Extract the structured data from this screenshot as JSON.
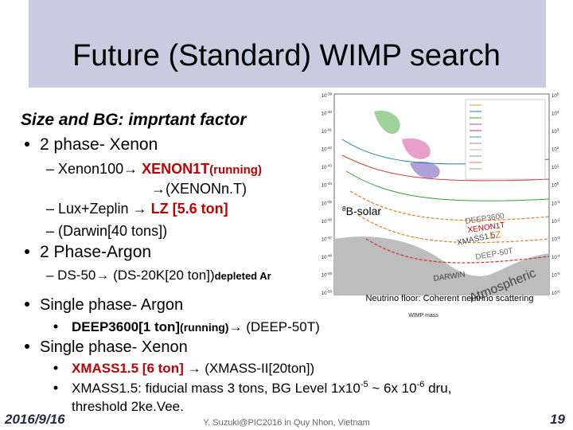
{
  "title": "Future (Standard) WIMP search",
  "body": {
    "heading": "Size and BG:  imprtant factor",
    "lines": [
      [
        "2 phase- Xenon"
      ],
      [
        "– Xenon100→ ",
        "XENON1T",
        "(running)"
      ],
      [
        "→(XENONn.T)"
      ],
      [
        "– Lux+Zeplin → ",
        "LZ [5.6 ton]"
      ],
      [
        "– (Darwin[40 tons])"
      ],
      [
        "2 Phase-Argon"
      ],
      [
        "– DS-50→ (DS-20K[20 ton])",
        "depleted Ar"
      ],
      [
        "Single phase- Argon"
      ],
      [
        "DEEP3600[1 ton]",
        "(running)",
        "→ (DEEP-50T)"
      ],
      [
        "Single phase- Xenon"
      ],
      [
        "XMASS1.5 [6 ton]",
        " → (XMASS-II[20ton])"
      ],
      [
        "XMASS1.5: fiducial mass 3 tons, BG Level 1x10",
        "-5",
        " ~ 6x 10",
        "-6",
        " dru,"
      ],
      [
        "threshold 2ke.Vee."
      ]
    ]
  },
  "plot": {
    "left_ticks": [
      "-39",
      "-40",
      "-41",
      "-42",
      "-43",
      "-44",
      "-45",
      "-46",
      "-47",
      "-48",
      "-49",
      "-50"
    ],
    "right_ticks": [
      "5",
      "4",
      "3",
      "2",
      "1",
      "0",
      "-1",
      "-2",
      "-3",
      "-4",
      "-5",
      "-6"
    ],
    "labels": [
      [
        "8",
        "B-solar"
      ],
      [
        "DEEP3600"
      ],
      [
        "XENON1T"
      ],
      [
        "XMASS1.5"
      ],
      [
        "LZ"
      ],
      [
        "DEEP-50T"
      ],
      [
        "DARWIN"
      ],
      [
        "Atmospheric"
      ]
    ],
    "x_label": "WIMP mass",
    "caption": "Neutrino floor: Coherent neutrino scattering"
  },
  "footer": {
    "date": "2016/9/16",
    "credit": "Y. Suzuki@PIC2016 in Quy Nhon, Vietnam",
    "page": "19"
  }
}
